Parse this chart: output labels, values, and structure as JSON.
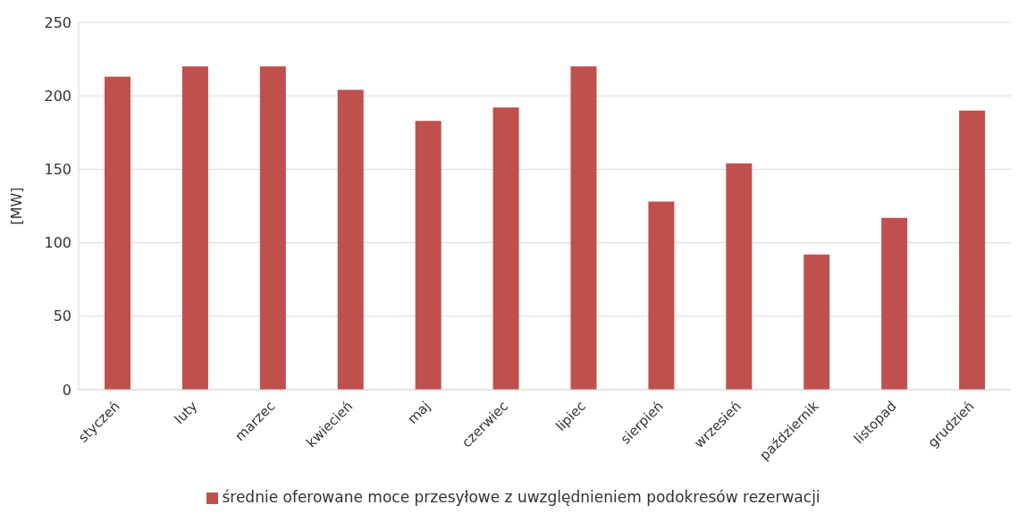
{
  "chart_data": {
    "type": "bar",
    "ylabel": "[MW]",
    "categories": [
      "styczeń",
      "luty",
      "marzec",
      "kwiecień",
      "maj",
      "czerwiec",
      "lipiec",
      "sierpień",
      "wrzesień",
      "październik",
      "listopad",
      "grudzień"
    ],
    "series": [
      {
        "name": "średnie oferowane moce przesyłowe z uwzględnieniem podokresów rezerwacji",
        "color": "#c0504d",
        "values": [
          213,
          220,
          220,
          204,
          183,
          192,
          220,
          128,
          154,
          92,
          117,
          190
        ]
      }
    ],
    "ylim": [
      0,
      250
    ],
    "yticks": [
      0,
      50,
      100,
      150,
      200,
      250
    ],
    "grid": "y",
    "legend": "bottom"
  }
}
